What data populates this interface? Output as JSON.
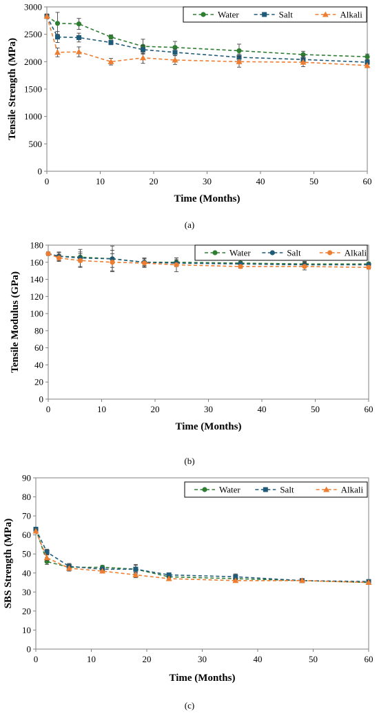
{
  "colors": {
    "water": "#2e7d32",
    "salt": "#1f5a78",
    "alkali": "#ed7d31"
  },
  "chart_data": [
    {
      "type": "line",
      "caption": "(a)",
      "xlabel": "Time (Months)",
      "ylabel": "Tensile Strength (MPa)",
      "xlim": [
        0,
        60
      ],
      "ylim": [
        0,
        3000
      ],
      "xticks": [
        "0",
        "10",
        "20",
        "30",
        "40",
        "50",
        "60"
      ],
      "yticks": [
        "0",
        "500",
        "1000",
        "1500",
        "2000",
        "2500",
        "3000"
      ],
      "legend": "top-right",
      "x": [
        0,
        2,
        6,
        12,
        18,
        24,
        36,
        48,
        60
      ],
      "series": [
        {
          "name": "Water",
          "marker": "circle",
          "color_key": "water",
          "values": [
            2830,
            2700,
            2690,
            2450,
            2280,
            2260,
            2200,
            2130,
            2090
          ],
          "errors": [
            40,
            200,
            100,
            40,
            130,
            110,
            120,
            60,
            50
          ]
        },
        {
          "name": "Salt",
          "marker": "square",
          "color_key": "salt",
          "values": [
            2830,
            2450,
            2440,
            2350,
            2220,
            2170,
            2080,
            2040,
            1990
          ],
          "errors": [
            40,
            100,
            80,
            40,
            80,
            60,
            60,
            60,
            40
          ]
        },
        {
          "name": "Alkali",
          "marker": "triangle",
          "color_key": "alkali",
          "values": [
            2830,
            2170,
            2180,
            2000,
            2070,
            2030,
            2000,
            1990,
            1930
          ],
          "errors": [
            40,
            80,
            90,
            60,
            100,
            80,
            100,
            80,
            40
          ]
        }
      ]
    },
    {
      "type": "line",
      "caption": "(b)",
      "xlabel": "Time (Months)",
      "ylabel": "Tensile Modulus (GPa)",
      "xlim": [
        0,
        60
      ],
      "ylim": [
        0,
        180
      ],
      "xticks": [
        "0",
        "10",
        "20",
        "30",
        "40",
        "50",
        "60"
      ],
      "yticks": [
        "0",
        "20",
        "40",
        "60",
        "80",
        "100",
        "120",
        "140",
        "160",
        "180"
      ],
      "legend": "top-right",
      "x": [
        0,
        2,
        6,
        12,
        18,
        24,
        36,
        48,
        60
      ],
      "series": [
        {
          "name": "Water",
          "marker": "circle",
          "color_key": "water",
          "values": [
            170,
            167,
            166,
            164,
            160,
            160,
            159,
            158,
            158
          ],
          "errors": [
            2,
            4,
            6,
            15,
            5,
            5,
            2,
            3,
            2
          ]
        },
        {
          "name": "Salt",
          "marker": "circle",
          "color_key": "salt",
          "values": [
            170,
            167,
            165,
            164,
            160,
            159,
            158,
            157,
            157
          ],
          "errors": [
            2,
            5,
            10,
            10,
            4,
            4,
            2,
            3,
            2
          ]
        },
        {
          "name": "Alkali",
          "marker": "circle",
          "color_key": "alkali",
          "values": [
            170,
            165,
            162,
            160,
            159,
            157,
            155,
            155,
            154
          ],
          "errors": [
            2,
            4,
            8,
            10,
            5,
            8,
            2,
            4,
            2
          ]
        }
      ]
    },
    {
      "type": "line",
      "caption": "(c)",
      "xlabel": "Time (Months)",
      "ylabel": "SBS Strength (MPa)",
      "xlim": [
        0,
        60
      ],
      "ylim": [
        0,
        90
      ],
      "xticks": [
        "0",
        "10",
        "20",
        "30",
        "40",
        "50",
        "60"
      ],
      "yticks": [
        "0",
        "10",
        "20",
        "30",
        "40",
        "50",
        "60",
        "70",
        "80",
        "90"
      ],
      "legend": "top-right",
      "x": [
        0,
        2,
        6,
        12,
        18,
        24,
        36,
        48,
        60
      ],
      "series": [
        {
          "name": "Water",
          "marker": "circle",
          "color_key": "water",
          "values": [
            63,
            46,
            43,
            43,
            42,
            38,
            37,
            36,
            35
          ],
          "errors": [
            1,
            1.5,
            1.5,
            1,
            2,
            1,
            1.5,
            1,
            1
          ]
        },
        {
          "name": "Salt",
          "marker": "square",
          "color_key": "salt",
          "values": [
            63,
            51,
            43.5,
            42,
            42,
            39,
            38,
            36,
            35.5
          ],
          "errors": [
            1,
            1.5,
            1.5,
            1,
            2.5,
            1,
            1.5,
            1,
            1
          ]
        },
        {
          "name": "Alkali",
          "marker": "triangle",
          "color_key": "alkali",
          "values": [
            62,
            48,
            42.5,
            41,
            39,
            37,
            36,
            36,
            35
          ],
          "errors": [
            1,
            1.5,
            1.5,
            1,
            1.5,
            1,
            1,
            1,
            1
          ]
        }
      ]
    }
  ]
}
